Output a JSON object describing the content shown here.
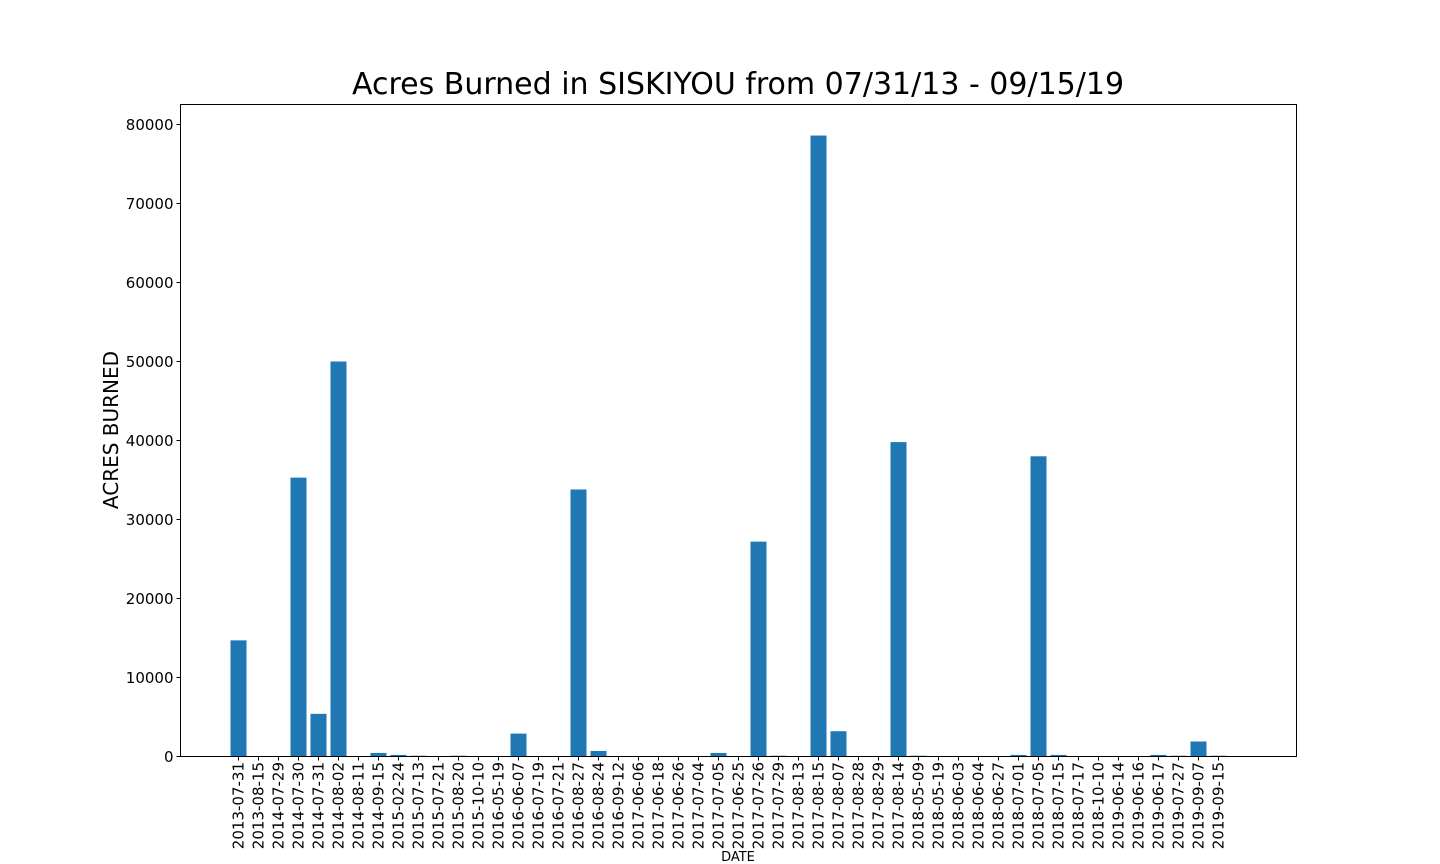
{
  "chart_data": {
    "type": "bar",
    "title": "Acres Burned in SISKIYOU from 07/31/13 - 09/15/19",
    "xlabel": "DATE",
    "ylabel": "ACRES BURNED",
    "ylim": [
      0,
      82500
    ],
    "yticks": [
      0,
      10000,
      20000,
      30000,
      40000,
      50000,
      60000,
      70000,
      80000
    ],
    "grid": false,
    "bar_color": "#1f77b4",
    "categories": [
      "2013-07-31",
      "2013-08-15",
      "2014-07-29",
      "2014-07-30",
      "2014-07-31",
      "2014-08-02",
      "2014-08-11",
      "2014-09-15",
      "2015-02-24",
      "2015-07-13",
      "2015-07-21",
      "2015-08-20",
      "2015-10-10",
      "2016-05-19",
      "2016-06-07",
      "2016-07-19",
      "2016-07-21",
      "2016-08-27",
      "2016-08-24",
      "2016-09-12",
      "2017-06-06",
      "2017-06-18",
      "2017-06-26",
      "2017-07-04",
      "2017-07-05",
      "2017-06-25",
      "2017-07-26",
      "2017-07-29",
      "2017-08-13",
      "2017-08-15",
      "2017-08-07",
      "2017-08-28",
      "2017-08-29",
      "2017-08-14",
      "2018-05-09",
      "2018-05-19",
      "2018-06-03",
      "2018-06-04",
      "2018-06-27",
      "2018-07-01",
      "2018-07-05",
      "2018-07-15",
      "2018-07-17",
      "2018-10-10",
      "2019-06-14",
      "2019-06-16",
      "2019-06-17",
      "2019-07-27",
      "2019-09-07",
      "2019-09-15"
    ],
    "values": [
      14700,
      0,
      0,
      35300,
      5400,
      50000,
      0,
      450,
      200,
      100,
      0,
      100,
      0,
      0,
      2900,
      0,
      0,
      33800,
      700,
      0,
      0,
      0,
      0,
      0,
      450,
      0,
      27200,
      100,
      0,
      78600,
      3200,
      0,
      0,
      39800,
      100,
      0,
      0,
      0,
      0,
      200,
      38000,
      200,
      0,
      0,
      0,
      0,
      200,
      100,
      1900,
      100
    ]
  }
}
